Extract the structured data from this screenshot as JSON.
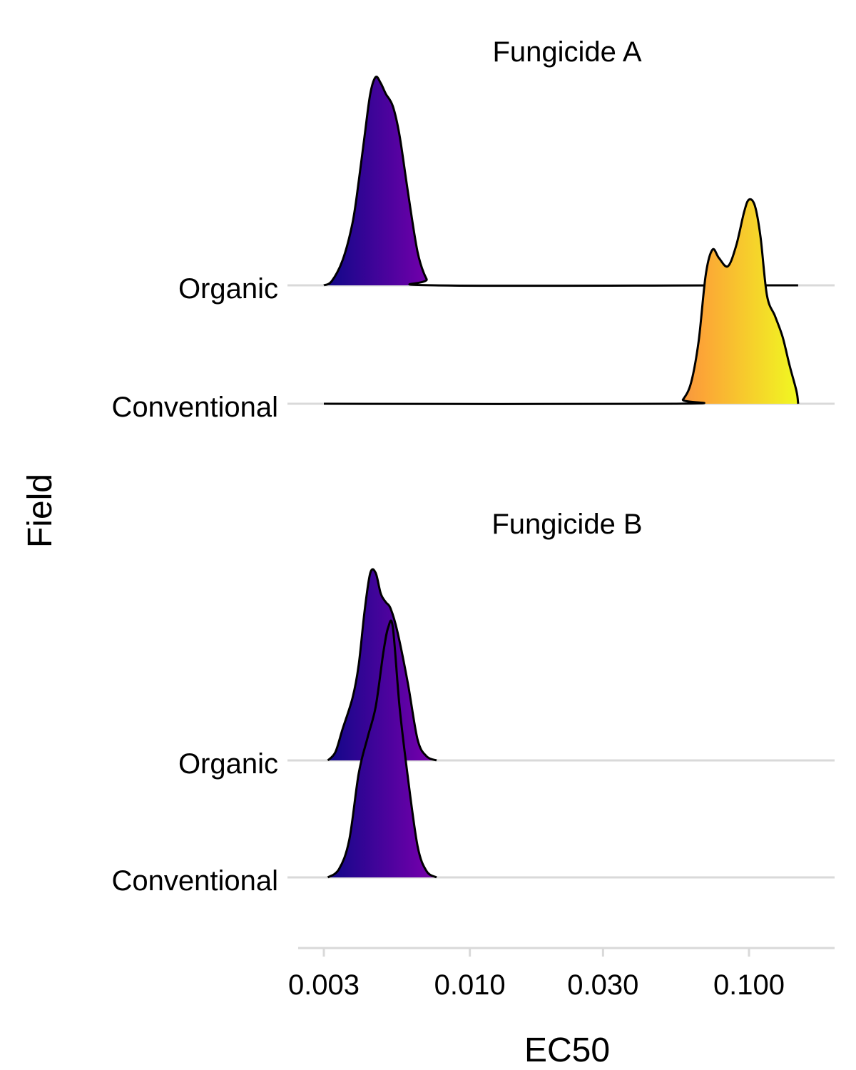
{
  "chart_data": {
    "type": "area",
    "subtype": "ridgeline",
    "xlabel": "EC50",
    "ylabel": "Field",
    "x_scale": "log10",
    "xlim": [
      0.0027,
      0.2
    ],
    "x_ticks": [
      0.003,
      0.01,
      0.03,
      0.1
    ],
    "x_tick_labels": [
      "0.003",
      "0.010",
      "0.030",
      "0.100"
    ],
    "grid": "horizontal-only",
    "legend": "none",
    "fill_colormap": "plasma",
    "fill_colormap_domain": [
      0.003,
      0.15
    ],
    "colormap_stops": [
      "#0d0887",
      "#6a00a8",
      "#b12a90",
      "#e16462",
      "#fca636",
      "#f0f921"
    ],
    "categories": [
      "Organic",
      "Conventional"
    ],
    "facets": [
      {
        "title": "Fungicide A",
        "series": [
          {
            "category": "Organic",
            "points": [
              [
                0.003,
                0
              ],
              [
                0.0032,
                0.02
              ],
              [
                0.0035,
                0.12
              ],
              [
                0.0038,
                0.3
              ],
              [
                0.004,
                0.5
              ],
              [
                0.0042,
                0.72
              ],
              [
                0.0044,
                0.92
              ],
              [
                0.0046,
                1.0
              ],
              [
                0.0048,
                0.97
              ],
              [
                0.005,
                0.92
              ],
              [
                0.0053,
                0.86
              ],
              [
                0.0056,
                0.72
              ],
              [
                0.006,
                0.45
              ],
              [
                0.0065,
                0.16
              ],
              [
                0.007,
                0.03
              ],
              [
                0.0075,
                0
              ],
              [
                0.1,
                0
              ],
              [
                0.15,
                0
              ]
            ]
          },
          {
            "category": "Conventional",
            "points": [
              [
                0.003,
                0
              ],
              [
                0.055,
                0
              ],
              [
                0.058,
                0.02
              ],
              [
                0.062,
                0.1
              ],
              [
                0.066,
                0.3
              ],
              [
                0.07,
                0.62
              ],
              [
                0.074,
                0.74
              ],
              [
                0.078,
                0.7
              ],
              [
                0.084,
                0.66
              ],
              [
                0.09,
                0.76
              ],
              [
                0.096,
                0.92
              ],
              [
                0.1,
                0.98
              ],
              [
                0.105,
                0.95
              ],
              [
                0.11,
                0.8
              ],
              [
                0.116,
                0.52
              ],
              [
                0.124,
                0.42
              ],
              [
                0.132,
                0.32
              ],
              [
                0.14,
                0.18
              ],
              [
                0.148,
                0.06
              ],
              [
                0.15,
                0
              ]
            ]
          }
        ]
      },
      {
        "title": "Fungicide B",
        "series": [
          {
            "category": "Organic",
            "points": [
              [
                0.0031,
                0
              ],
              [
                0.0033,
                0.04
              ],
              [
                0.0035,
                0.15
              ],
              [
                0.0038,
                0.3
              ],
              [
                0.004,
                0.46
              ],
              [
                0.0042,
                0.72
              ],
              [
                0.0044,
                0.9
              ],
              [
                0.0046,
                0.9
              ],
              [
                0.0048,
                0.8
              ],
              [
                0.005,
                0.76
              ],
              [
                0.0052,
                0.73
              ],
              [
                0.0055,
                0.62
              ],
              [
                0.006,
                0.37
              ],
              [
                0.0065,
                0.1
              ],
              [
                0.007,
                0.02
              ],
              [
                0.0076,
                0
              ]
            ]
          },
          {
            "category": "Conventional",
            "points": [
              [
                0.0031,
                0
              ],
              [
                0.0034,
                0.04
              ],
              [
                0.0037,
                0.18
              ],
              [
                0.004,
                0.5
              ],
              [
                0.0043,
                0.67
              ],
              [
                0.0046,
                0.82
              ],
              [
                0.0049,
                1.08
              ],
              [
                0.0051,
                1.2
              ],
              [
                0.0053,
                1.2
              ],
              [
                0.0056,
                0.82
              ],
              [
                0.006,
                0.48
              ],
              [
                0.0065,
                0.15
              ],
              [
                0.007,
                0.03
              ],
              [
                0.0076,
                0
              ]
            ]
          }
        ]
      }
    ]
  }
}
